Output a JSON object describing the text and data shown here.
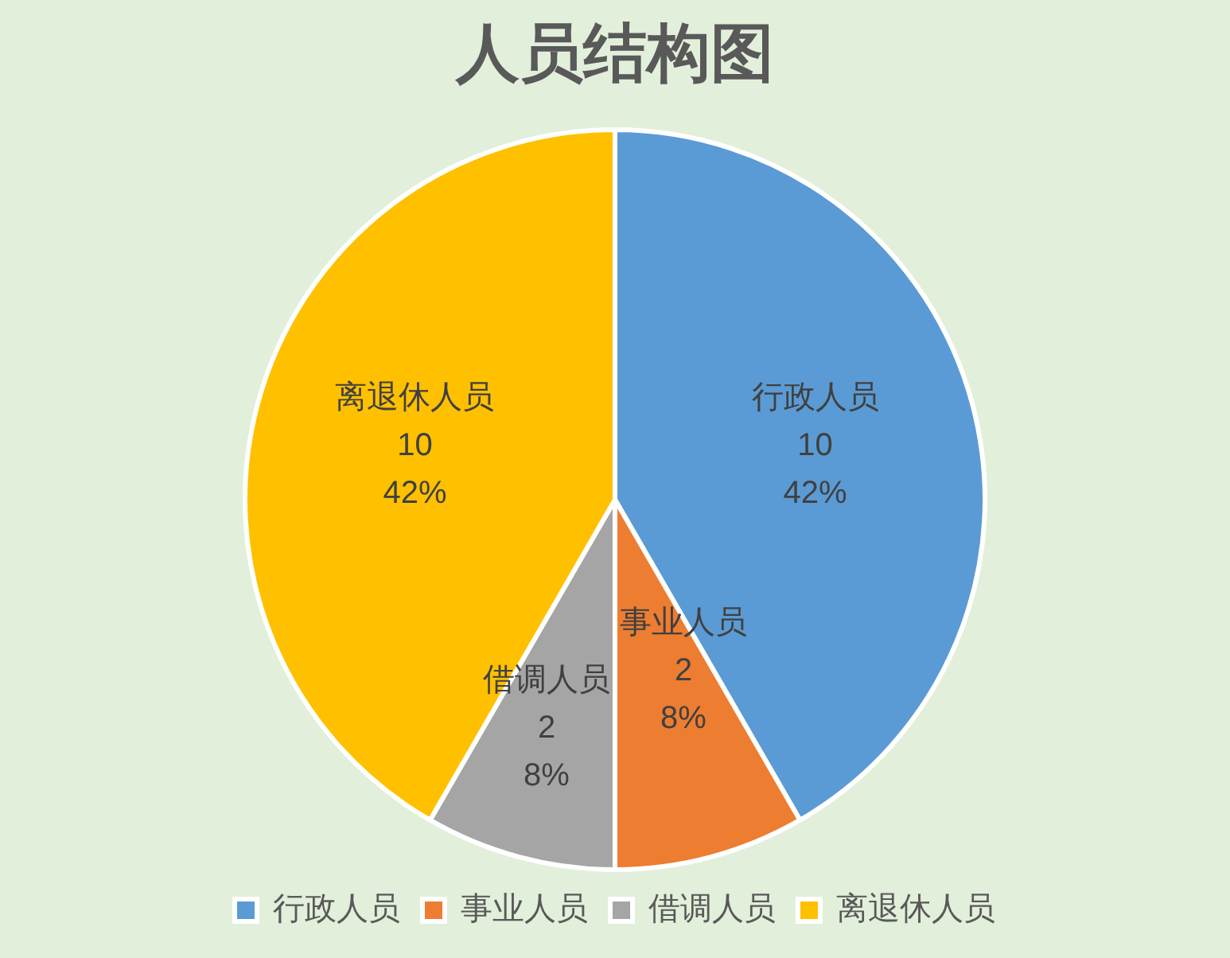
{
  "chart_data": {
    "type": "pie",
    "title": "人员结构图",
    "categories": [
      "行政人员",
      "事业人员",
      "借调人员",
      "离退休人员"
    ],
    "values": [
      10,
      2,
      2,
      10
    ],
    "colors": [
      "#5b9bd5",
      "#ed7d31",
      "#a5a5a5",
      "#ffc000"
    ],
    "value_labels": [
      "10\n42%",
      "2\n8%",
      "2\n8%",
      "10\n42%"
    ],
    "legend": "bottom"
  }
}
